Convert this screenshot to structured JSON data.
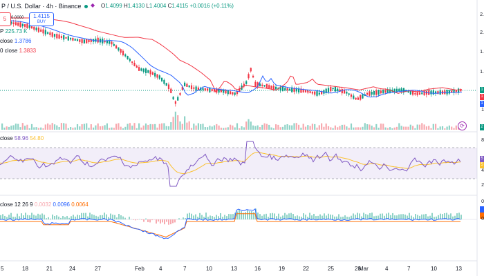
{
  "header": {
    "title": "P / U.S. Dollar · 4h · Binance",
    "o_label": "O",
    "o_value": "1.4099",
    "h_label": "H",
    "h_value": "1.4130",
    "l_label": "L",
    "l_value": "1.4004",
    "c_label": "C",
    "c_value": "1.4115",
    "change": "+0.0016 (+0.11%)",
    "status_color": "#089981"
  },
  "trade": {
    "sell_price_partial": "5",
    "spread": "0.0000",
    "buy_price": "1.4115",
    "buy_label": "BUY"
  },
  "legends": {
    "volume": {
      "label": "P",
      "value": "225.73 K"
    },
    "ma1": {
      "label": "close",
      "value": "1.3786"
    },
    "ma2": {
      "label": "0 close",
      "value": "1.3833"
    },
    "rsi": {
      "label": "close",
      "value1": "58.96",
      "value2": "54.80"
    },
    "macd": {
      "label": "close 12 26 9",
      "value1": "0.0032",
      "value2": "0.0096",
      "value3": "0.0064"
    }
  },
  "right_axis": {
    "price_ticks": [
      "2.",
      "2.",
      "1.",
      "1.",
      "1"
    ],
    "rsi_ticks": [
      "8",
      "4",
      "2"
    ],
    "macd_ticks": [
      "0",
      "0"
    ],
    "volume_tag": "2",
    "price_tags": [
      "1",
      "1",
      "1"
    ],
    "rsi_tags": [
      "5",
      "5"
    ]
  },
  "x_axis": [
    "5",
    "18",
    "21",
    "24",
    "27",
    "Feb",
    "4",
    "7",
    "10",
    "13",
    "16",
    "19",
    "22",
    "25",
    "28",
    "Mar",
    "4",
    "7",
    "10",
    "13"
  ],
  "colors": {
    "up": "#089981",
    "down": "#f23645",
    "ma_blue": "#2962ff",
    "ma_red": "#f23645",
    "rsi": "#7e57c2",
    "rsi_ma": "#fbc02d"
  },
  "icons": {
    "status": "dot-icon",
    "shape": "diamond-share-icon",
    "replay": "clock-icon"
  }
}
